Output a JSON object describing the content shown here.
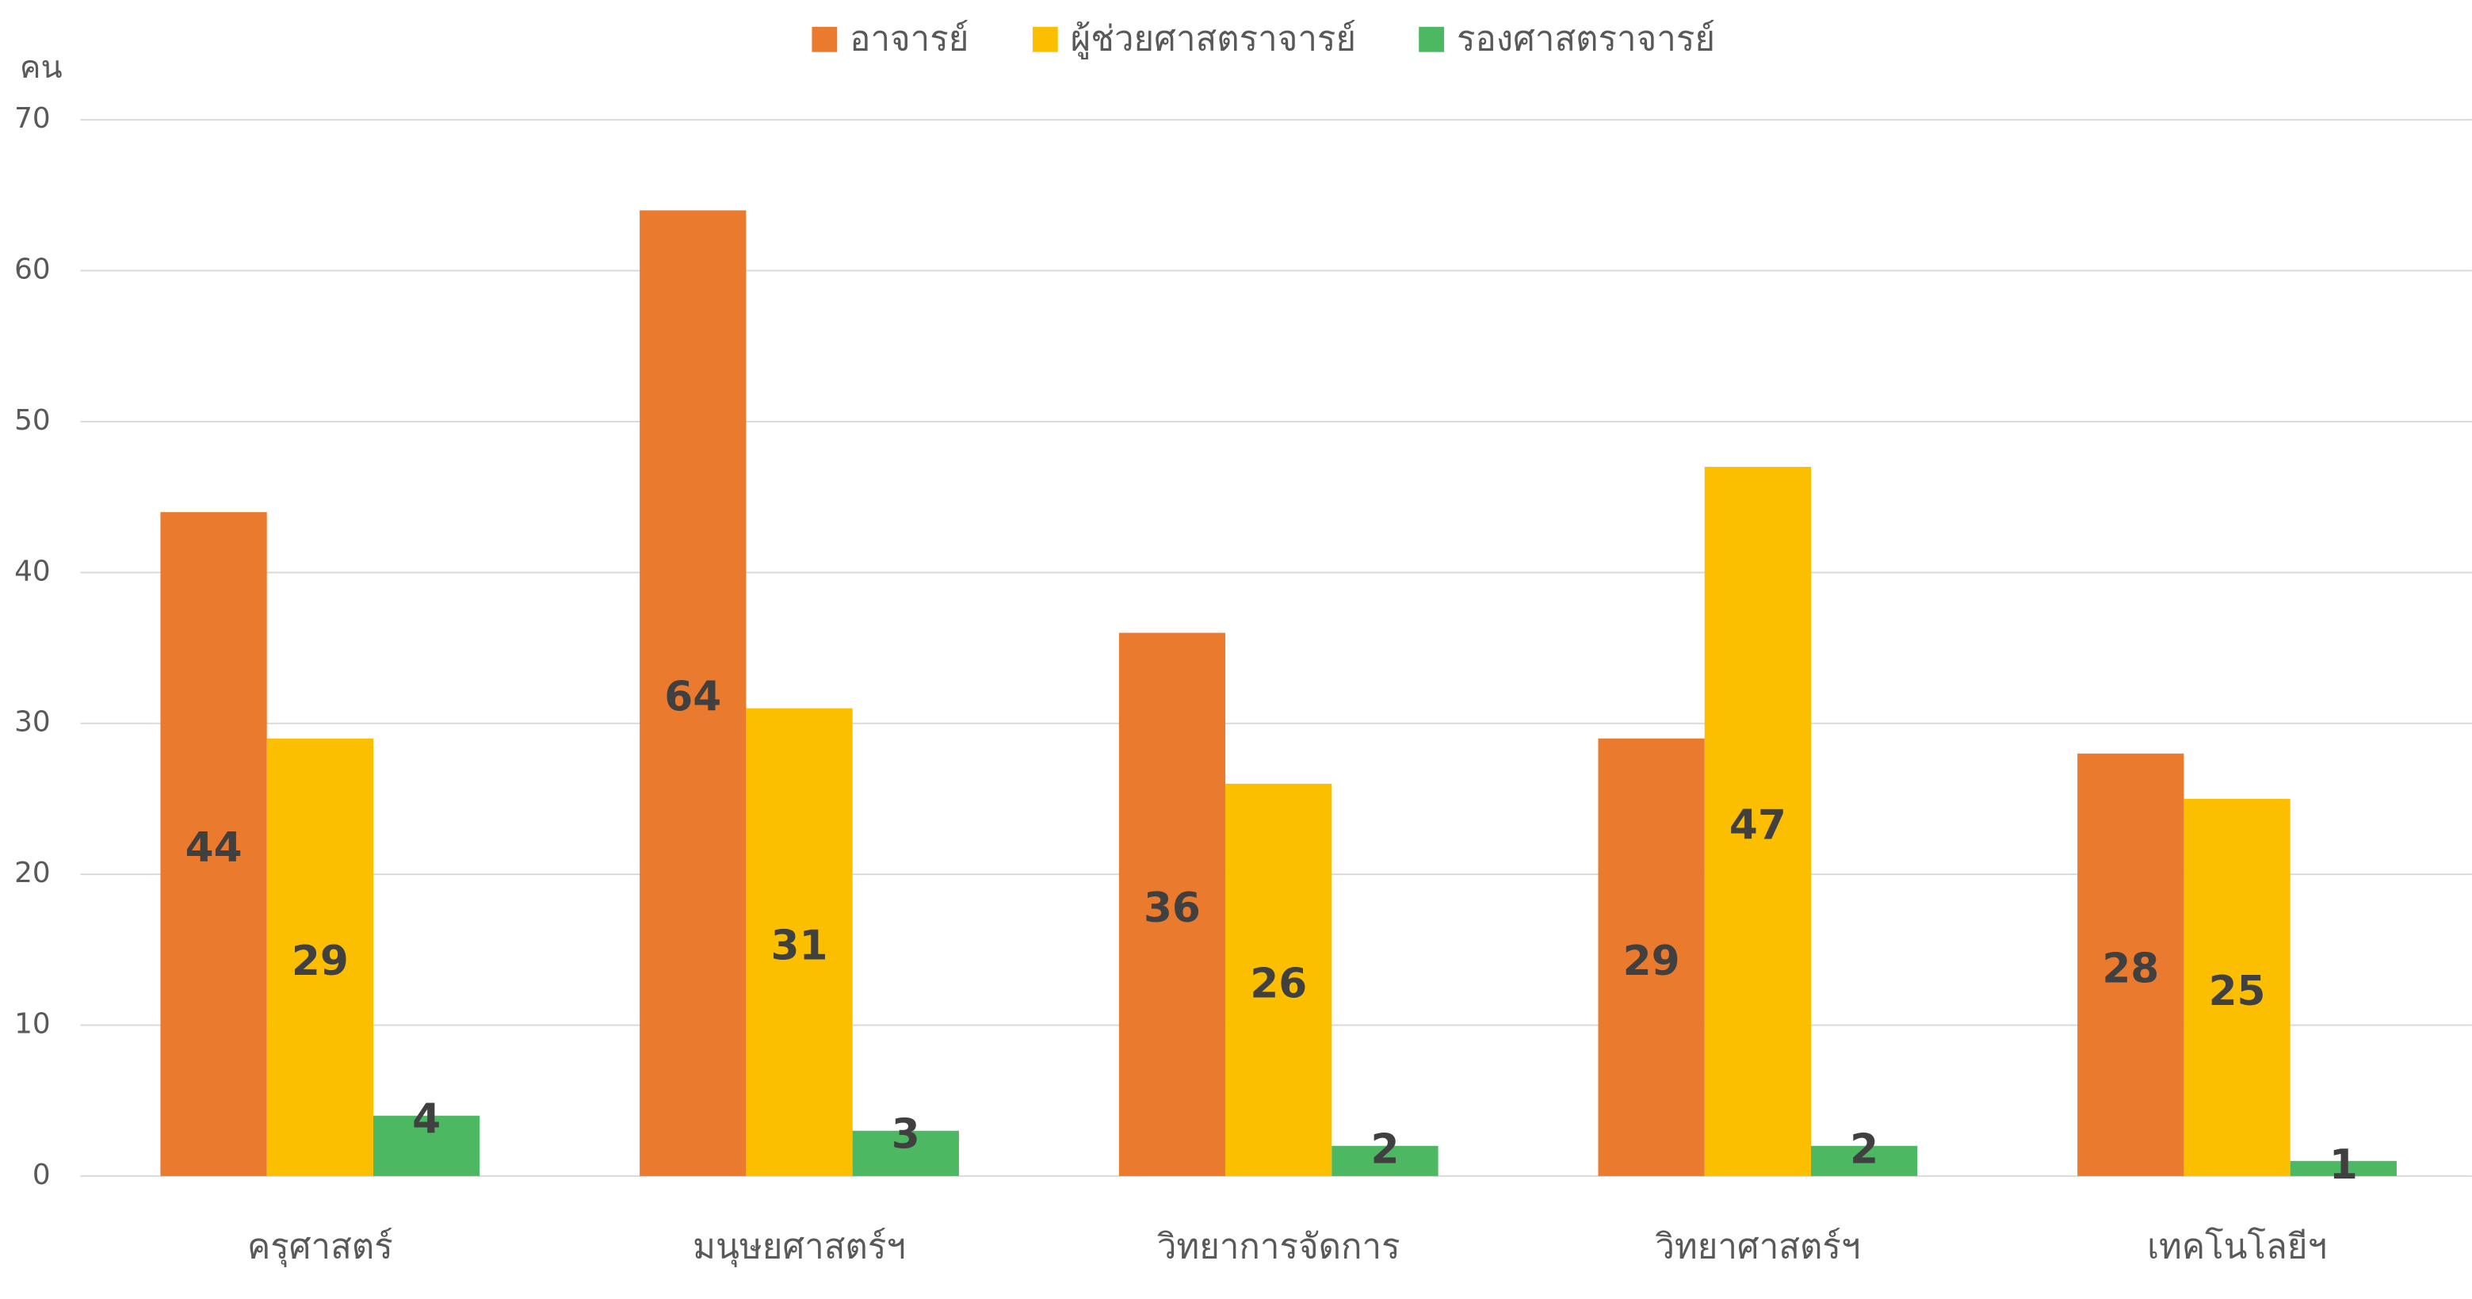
{
  "chart_data": {
    "type": "bar",
    "y_label": "คน",
    "categories": [
      "ครุศาสตร์",
      "มนุษยศาสตร์ฯ",
      "วิทยาการจัดการ",
      "วิทยาศาสตร์ฯ",
      "เทคโนโลยีฯ"
    ],
    "series": [
      {
        "name": "อาจารย์",
        "color": "#e97a2e",
        "values": [
          44,
          64,
          36,
          29,
          28
        ]
      },
      {
        "name": "ผู้ช่วยศาสตราจารย์",
        "color": "#fbbf00",
        "values": [
          29,
          31,
          26,
          47,
          25
        ]
      },
      {
        "name": "รองศาสตราจารย์",
        "color": "#4cb862",
        "values": [
          4,
          3,
          2,
          2,
          1
        ]
      }
    ],
    "ylim": [
      0,
      70
    ],
    "yticks": [
      0,
      10,
      20,
      30,
      40,
      50,
      60,
      70
    ],
    "grid": true,
    "legend": "top"
  }
}
